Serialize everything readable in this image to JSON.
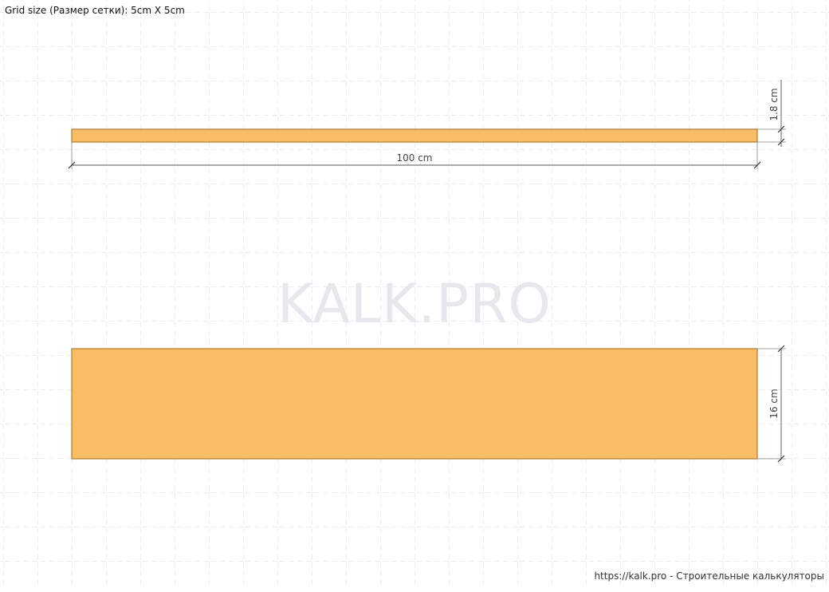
{
  "header": {
    "grid_size_text": "Grid size (Размер сетки): 5cm X 5cm"
  },
  "watermark": {
    "text": "KALK.PRO"
  },
  "board_side": {
    "length_label": "100 cm",
    "thickness_label": "1.8 cm"
  },
  "board_face": {
    "width_label": "16 cm"
  },
  "footer": {
    "credit_text": "https://kalk.pro - Строительные калькуляторы"
  },
  "colors": {
    "board_fill": "#f8bd65",
    "board_stroke": "#b88335",
    "grid_line": "#dfe5ee",
    "dimension_line": "#555555",
    "watermark": "#e6e8ec"
  }
}
